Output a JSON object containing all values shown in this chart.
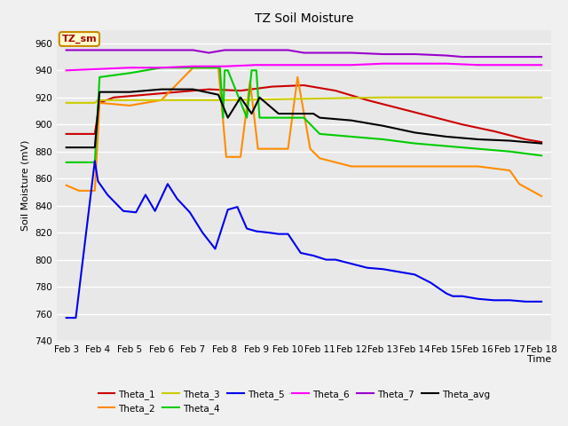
{
  "title": "TZ Soil Moisture",
  "xlabel": "Time",
  "ylabel": "Soil Moisture (mV)",
  "ylim": [
    740,
    970
  ],
  "yticks": [
    740,
    760,
    780,
    800,
    820,
    840,
    860,
    880,
    900,
    920,
    940,
    960
  ],
  "fig_bg": "#f0f0f0",
  "plot_bg": "#e8e8e8",
  "label_box": "TZ_sm",
  "series": {
    "Theta_1": {
      "color": "#cc0000",
      "x": [
        0,
        0.9,
        1.05,
        1.5,
        2.5,
        3.5,
        4.5,
        5.5,
        6.5,
        7.5,
        8.5,
        9.5,
        10.5,
        11.5,
        12.5,
        13.5,
        14.5,
        15
      ],
      "y": [
        893,
        893,
        916,
        920,
        922,
        924,
        926,
        925,
        928,
        929,
        925,
        918,
        912,
        906,
        900,
        895,
        889,
        887
      ]
    },
    "Theta_2": {
      "color": "#ff8c00",
      "x": [
        0,
        0.4,
        0.9,
        1.05,
        2,
        3,
        4,
        4.8,
        5.05,
        5.5,
        5.8,
        6.05,
        6.5,
        7,
        7.3,
        7.7,
        8,
        9,
        10,
        11,
        12,
        13,
        14,
        14.3,
        15
      ],
      "y": [
        855,
        851,
        851,
        916,
        914,
        918,
        942,
        942,
        876,
        876,
        932,
        882,
        882,
        882,
        935,
        882,
        875,
        869,
        869,
        869,
        869,
        869,
        866,
        856,
        847
      ]
    },
    "Theta_3": {
      "color": "#cccc00",
      "x": [
        0,
        0.9,
        1.0,
        2,
        5,
        10,
        15
      ],
      "y": [
        916,
        916,
        918,
        918,
        918,
        920,
        920
      ]
    },
    "Theta_4": {
      "color": "#00cc00",
      "x": [
        0,
        0.4,
        0.9,
        1.05,
        2,
        3,
        4,
        4.85,
        4.95,
        5.0,
        5.1,
        5.7,
        5.85,
        6.0,
        6.1,
        6.7,
        7,
        7.5,
        8,
        9,
        10,
        11,
        12,
        13,
        14,
        15
      ],
      "y": [
        872,
        872,
        872,
        935,
        938,
        942,
        942,
        942,
        905,
        940,
        940,
        905,
        940,
        940,
        905,
        905,
        905,
        905,
        893,
        891,
        889,
        886,
        884,
        882,
        880,
        877
      ]
    },
    "Theta_5": {
      "color": "#0000ee",
      "x": [
        0,
        0.3,
        0.9,
        1.0,
        1.3,
        1.8,
        2.2,
        2.5,
        2.8,
        3.2,
        3.5,
        3.9,
        4.3,
        4.7,
        5.1,
        5.4,
        5.7,
        6.0,
        6.4,
        6.7,
        7.0,
        7.4,
        7.8,
        8.2,
        8.5,
        9.0,
        9.5,
        10,
        10.5,
        11,
        11.5,
        12,
        12.2,
        12.5,
        13,
        13.5,
        14,
        14.5,
        15
      ],
      "y": [
        757,
        757,
        873,
        858,
        848,
        836,
        835,
        848,
        836,
        856,
        845,
        835,
        820,
        808,
        837,
        839,
        823,
        821,
        820,
        819,
        819,
        805,
        803,
        800,
        800,
        797,
        794,
        793,
        791,
        789,
        783,
        775,
        773,
        773,
        771,
        770,
        770,
        769,
        769
      ]
    },
    "Theta_6": {
      "color": "#ff00ff",
      "x": [
        0,
        1,
        2,
        3,
        4,
        5,
        6,
        7,
        8,
        9,
        10,
        11,
        12,
        13,
        14,
        15
      ],
      "y": [
        940,
        941,
        942,
        942,
        943,
        943,
        944,
        944,
        944,
        944,
        945,
        945,
        945,
        944,
        944,
        944
      ]
    },
    "Theta_7": {
      "color": "#9900cc",
      "x": [
        0,
        1,
        2,
        3,
        4,
        4.5,
        5,
        6,
        7,
        7.5,
        8,
        9,
        10,
        11,
        12,
        12.5,
        13,
        14,
        15
      ],
      "y": [
        955,
        955,
        955,
        955,
        955,
        953,
        955,
        955,
        955,
        953,
        953,
        953,
        952,
        952,
        951,
        950,
        950,
        950,
        950
      ]
    },
    "Theta_avg": {
      "color": "#000000",
      "x": [
        0,
        0.4,
        0.9,
        1.05,
        2,
        3,
        4,
        4.8,
        5.1,
        5.5,
        5.85,
        6.1,
        6.7,
        7.0,
        7.4,
        7.8,
        8,
        9,
        10,
        11,
        12,
        13,
        14,
        15
      ],
      "y": [
        883,
        883,
        883,
        924,
        924,
        926,
        926,
        922,
        905,
        920,
        908,
        920,
        908,
        908,
        908,
        908,
        905,
        903,
        899,
        894,
        891,
        889,
        888,
        886
      ]
    }
  },
  "xtick_labels": [
    "Feb 3",
    "Feb 4",
    "Feb 5",
    "Feb 6",
    "Feb 7",
    "Feb 8",
    "Feb 9",
    "Feb 10",
    "Feb 11",
    "Feb 12",
    "Feb 13",
    "Feb 14",
    "Feb 15",
    "Feb 16",
    "Feb 17",
    "Feb 18"
  ],
  "xtick_positions": [
    0,
    1,
    2,
    3,
    4,
    5,
    6,
    7,
    8,
    9,
    10,
    11,
    12,
    13,
    14,
    15
  ],
  "legend_order": [
    "Theta_1",
    "Theta_2",
    "Theta_3",
    "Theta_4",
    "Theta_5",
    "Theta_6",
    "Theta_7",
    "Theta_avg"
  ]
}
